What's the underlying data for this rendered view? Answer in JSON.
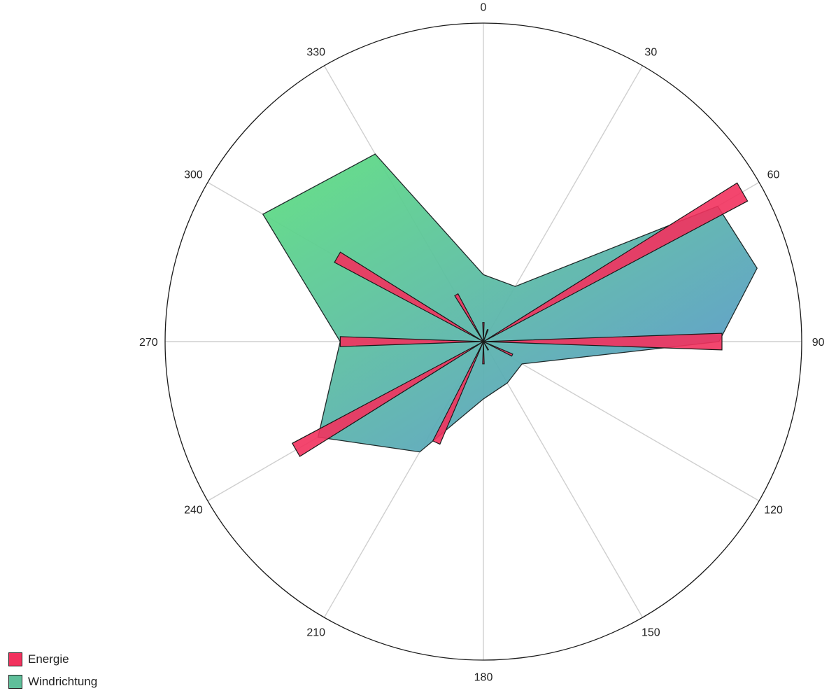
{
  "chart_data": {
    "type": "polar",
    "title": "",
    "angular_axis": {
      "direction": "clockwise",
      "rotation": "north",
      "ticks": [
        "0",
        "30",
        "60",
        "90",
        "120",
        "150",
        "180",
        "210",
        "240",
        "270",
        "300",
        "330"
      ],
      "tick_values": [
        0,
        30,
        60,
        90,
        120,
        150,
        180,
        210,
        240,
        270,
        300,
        330
      ]
    },
    "radial_axis": {
      "range": [
        0,
        1
      ],
      "visible_ticks": false
    },
    "grid": true,
    "legend": {
      "placement": "bottom-left"
    },
    "series": [
      {
        "name": "Windrichtung",
        "kind": "filled-polygon",
        "color_start": "#5fe07f",
        "color_end": "#5b8fd6",
        "points": [
          {
            "theta": 0,
            "r": 0.21
          },
          {
            "theta": 30,
            "r": 0.2
          },
          {
            "theta": 60,
            "r": 0.85
          },
          {
            "theta": 75,
            "r": 0.89
          },
          {
            "theta": 90,
            "r": 0.74
          },
          {
            "theta": 120,
            "r": 0.14
          },
          {
            "theta": 150,
            "r": 0.15
          },
          {
            "theta": 180,
            "r": 0.18
          },
          {
            "theta": 210,
            "r": 0.4
          },
          {
            "theta": 240,
            "r": 0.6
          },
          {
            "theta": 270,
            "r": 0.45
          },
          {
            "theta": 300,
            "r": 0.8
          },
          {
            "theta": 330,
            "r": 0.68
          }
        ]
      },
      {
        "name": "Energie",
        "kind": "wedges",
        "color": "#f2325e",
        "wedge_width_deg": 4,
        "points": [
          {
            "theta": 0,
            "r": 0.06
          },
          {
            "theta": 20,
            "r": 0.04
          },
          {
            "theta": 60,
            "r": 0.94
          },
          {
            "theta": 90,
            "r": 0.75
          },
          {
            "theta": 115,
            "r": 0.1
          },
          {
            "theta": 150,
            "r": 0.03
          },
          {
            "theta": 180,
            "r": 0.07
          },
          {
            "theta": 205,
            "r": 0.35
          },
          {
            "theta": 240,
            "r": 0.68
          },
          {
            "theta": 270,
            "r": 0.45
          },
          {
            "theta": 300,
            "r": 0.53
          },
          {
            "theta": 330,
            "r": 0.17
          }
        ]
      }
    ]
  },
  "legend": {
    "items": [
      {
        "label": "Energie",
        "color": "#f2325e"
      },
      {
        "label": "Windrichtung",
        "color": "#5fbf9a"
      }
    ]
  }
}
